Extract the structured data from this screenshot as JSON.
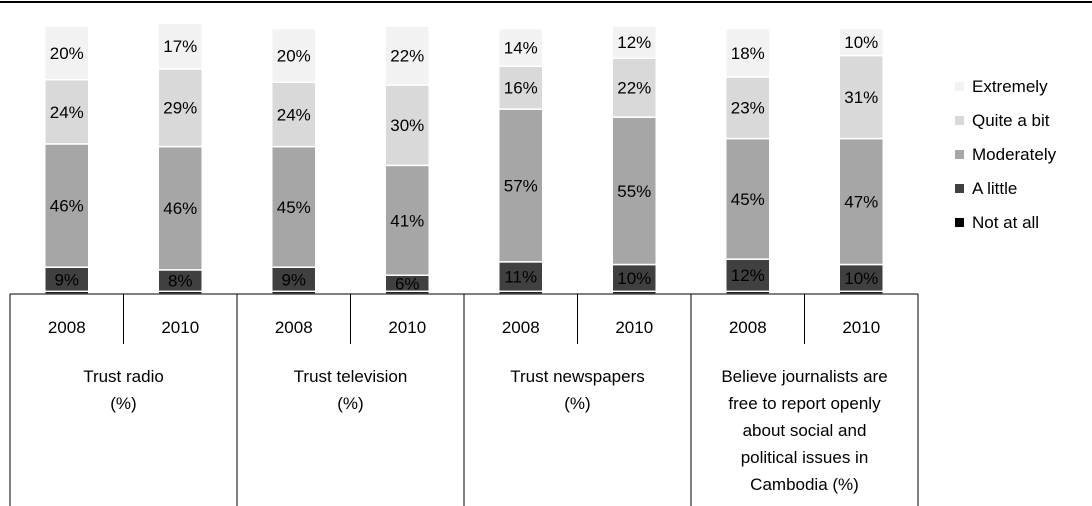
{
  "chart_data": {
    "type": "bar",
    "stacked": true,
    "grid": false,
    "legend_position": "right",
    "title": "",
    "xlabel": "",
    "ylabel": "",
    "ylim": [
      0,
      100
    ],
    "groups": [
      {
        "label": "Trust radio (%)",
        "lines": [
          "Trust radio",
          "(%)"
        ]
      },
      {
        "label": "Trust television (%)",
        "lines": [
          "Trust television",
          "(%)"
        ]
      },
      {
        "label": "Trust newspapers (%)",
        "lines": [
          "Trust newspapers",
          "(%)"
        ]
      },
      {
        "label": "Believe journalists are free to report openly about social and political issues in Cambodia (%)",
        "lines": [
          "Believe journalists are",
          "free to report openly",
          "about social and",
          "political issues in",
          "Cambodia (%)"
        ]
      }
    ],
    "categories": [
      "2008",
      "2010",
      "2008",
      "2010",
      "2008",
      "2010",
      "2008",
      "2010"
    ],
    "category_group": [
      0,
      0,
      1,
      1,
      2,
      2,
      3,
      3
    ],
    "series": [
      {
        "name": "Not at all",
        "color": "#000000",
        "label_color": "#ffffff",
        "values": [
          1,
          1,
          1,
          1,
          1,
          1,
          1,
          1
        ],
        "labels": [
          "",
          "",
          "",
          "",
          "",
          "",
          "",
          ""
        ]
      },
      {
        "name": "A little",
        "color": "#404040",
        "label_color": "#ffffff",
        "values": [
          9,
          8,
          9,
          6,
          11,
          10,
          12,
          10
        ],
        "labels": [
          "9%",
          "8%",
          "9%",
          "6%",
          "11%",
          "10%",
          "12%",
          "10%"
        ]
      },
      {
        "name": "Moderately",
        "color": "#a6a6a6",
        "label_color": "#000000",
        "values": [
          46,
          46,
          45,
          41,
          57,
          55,
          45,
          47
        ],
        "labels": [
          "46%",
          "46%",
          "45%",
          "41%",
          "57%",
          "55%",
          "45%",
          "47%"
        ]
      },
      {
        "name": "Quite a bit",
        "color": "#d9d9d9",
        "label_color": "#000000",
        "values": [
          24,
          29,
          24,
          30,
          16,
          22,
          23,
          31
        ],
        "labels": [
          "24%",
          "29%",
          "24%",
          "30%",
          "16%",
          "22%",
          "23%",
          "31%"
        ]
      },
      {
        "name": "Extremely",
        "color": "#f2f2f2",
        "label_color": "#000000",
        "values": [
          20,
          17,
          20,
          22,
          14,
          12,
          18,
          10
        ],
        "labels": [
          "20%",
          "17%",
          "20%",
          "22%",
          "14%",
          "12%",
          "18%",
          "10%"
        ]
      }
    ],
    "legend_order": [
      4,
      3,
      2,
      1,
      0
    ]
  }
}
